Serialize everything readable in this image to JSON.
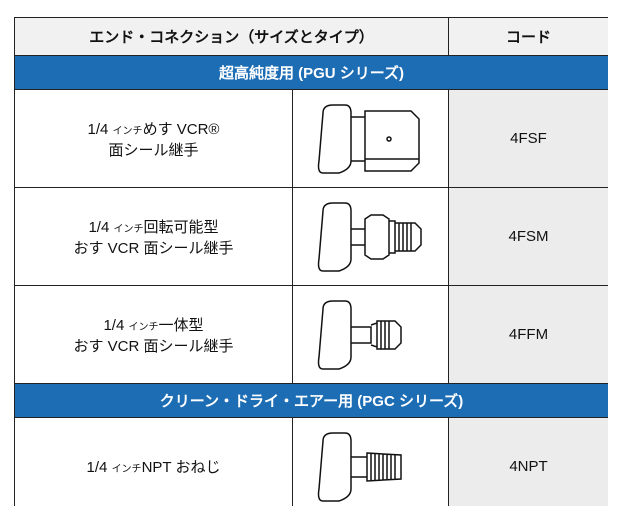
{
  "header": {
    "connection": "エンド・コネクション（サイズとタイプ）",
    "code": "コード"
  },
  "sections": [
    {
      "title": "超高純度用 (PGU シリーズ)",
      "rows": [
        {
          "size": "1/4",
          "unit": "インチ",
          "type": "めす VCR®",
          "line2": "面シール継手",
          "code": "4FSF"
        },
        {
          "size": "1/4",
          "unit": "インチ",
          "type": "回転可能型",
          "line2": "おす VCR 面シール継手",
          "code": "4FSM"
        },
        {
          "size": "1/4",
          "unit": "インチ",
          "type": "一体型",
          "line2": "おす VCR 面シール継手",
          "code": "4FFM"
        }
      ]
    },
    {
      "title": "クリーン・ドライ・エアー用 (PGC シリーズ)",
      "rows": [
        {
          "size": "1/4",
          "unit": "インチ",
          "type": "NPT おねじ",
          "code": "4NPT"
        }
      ]
    }
  ]
}
